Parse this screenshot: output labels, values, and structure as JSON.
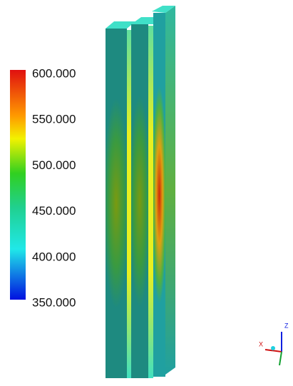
{
  "colorbar": {
    "labels": [
      "600.000",
      "550.000",
      "500.000",
      "450.000",
      "400.000",
      "350.000"
    ]
  },
  "triad": {
    "x_label": "X",
    "z_label": "Z"
  }
}
